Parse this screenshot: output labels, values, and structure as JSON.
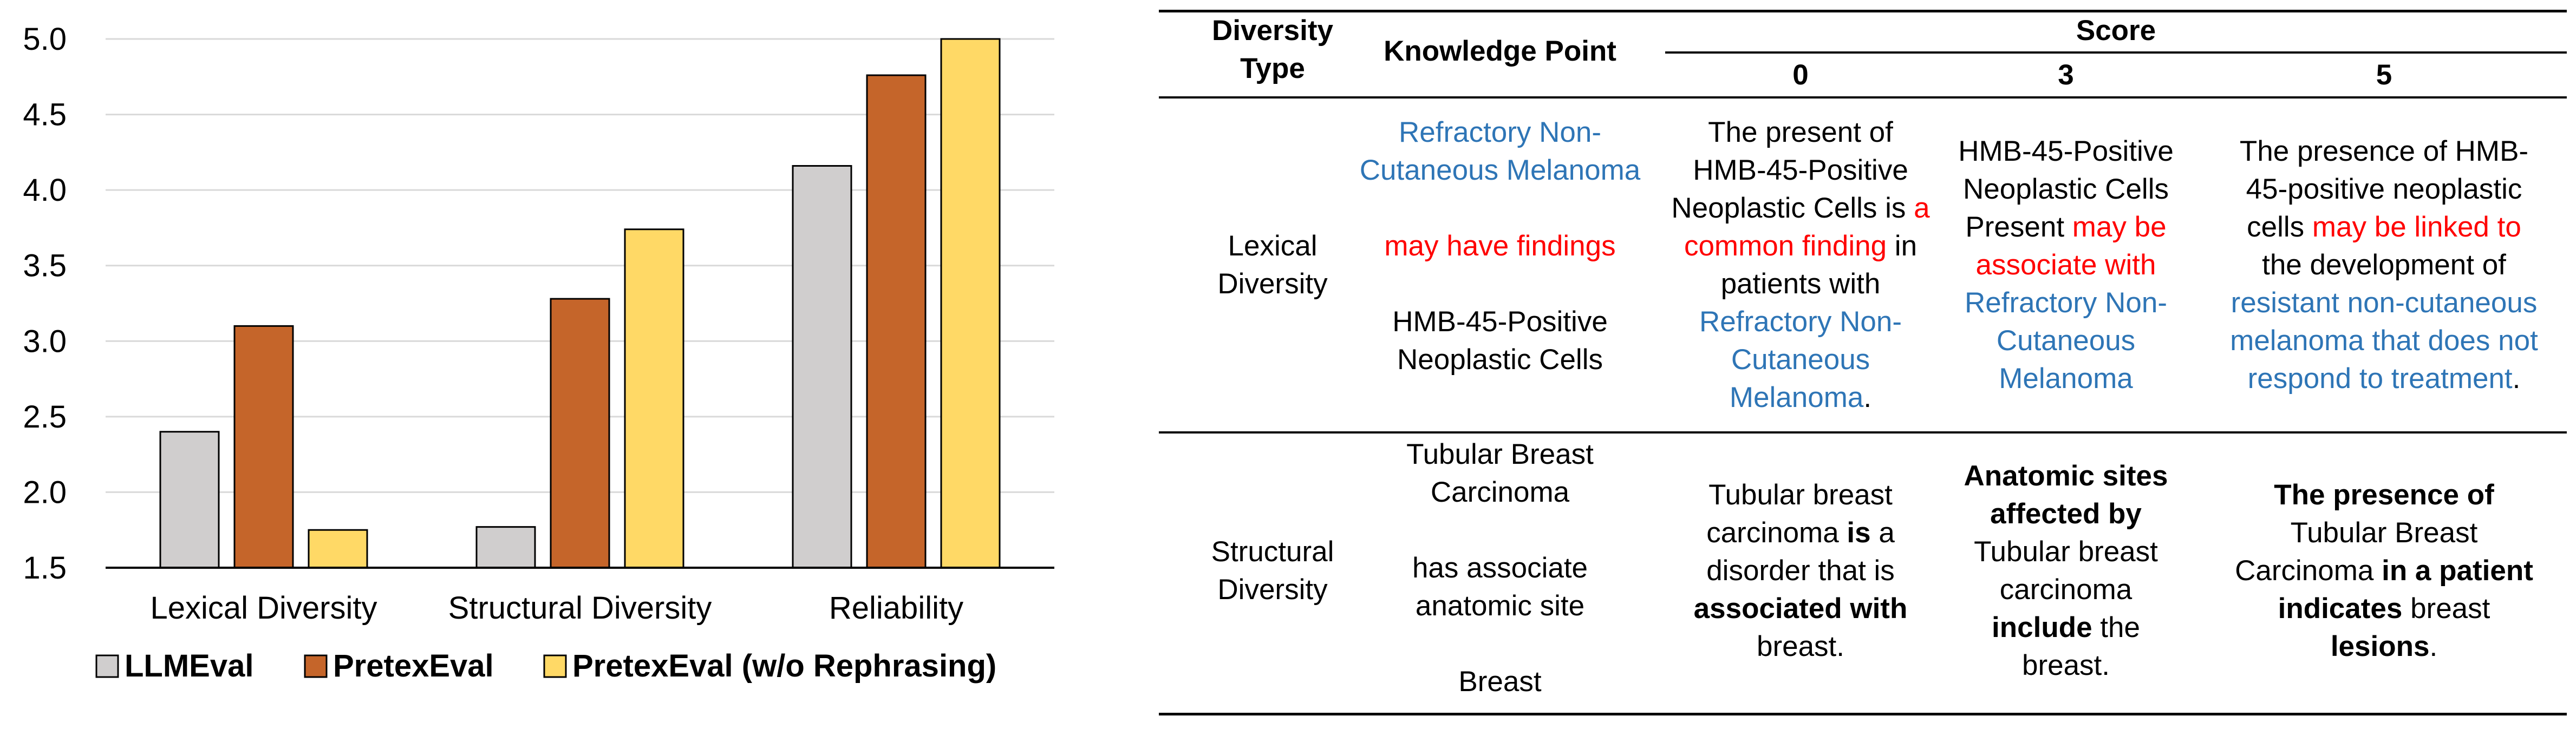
{
  "chart_data": {
    "type": "bar",
    "categories": [
      "Lexical Diversity",
      "Structural Diversity",
      "Reliability"
    ],
    "series": [
      {
        "name": "LLMEval",
        "values": [
          2.4,
          1.77,
          4.16
        ],
        "color": "#d0cece"
      },
      {
        "name": "PretexEval",
        "values": [
          3.1,
          3.28,
          4.76
        ],
        "color": "#c5652a"
      },
      {
        "name": "PretexEval (w/o Rephrasing)",
        "values": [
          1.75,
          3.74,
          5.0
        ],
        "color": "#ffd966"
      }
    ],
    "yticks": [
      "1.5",
      "2.0",
      "2.5",
      "3.0",
      "3.5",
      "4.0",
      "4.5",
      "5.0"
    ],
    "ylim": [
      1.5,
      5.0
    ],
    "grid": true,
    "legend": "bottom"
  },
  "table": {
    "headers": {
      "diversity_type": [
        "Diversity",
        "Type"
      ],
      "knowledge_point": "Knowledge Point",
      "score": "Score",
      "score0": "0",
      "score3": "3",
      "score5": "5"
    },
    "lexical": {
      "type": [
        "Lexical",
        "Diversity"
      ],
      "kp": [
        [
          {
            "t": "Refractory Non-",
            "c": "blue"
          }
        ],
        [
          {
            "t": "Cutaneous Melanoma",
            "c": "blue"
          }
        ],
        [],
        [
          {
            "t": "may have findings",
            "c": "red"
          }
        ],
        [],
        [
          {
            "t": "HMB-45-Positive"
          }
        ],
        [
          {
            "t": "Neoplastic Cells"
          }
        ]
      ],
      "s0": [
        [
          {
            "t": "The present of"
          }
        ],
        [
          {
            "t": "HMB-45-Positive"
          }
        ],
        [
          {
            "t": "Neoplastic Cells is "
          },
          {
            "t": "a",
            "c": "red"
          }
        ],
        [
          {
            "t": "common finding",
            "c": "red"
          },
          {
            "t": " in"
          }
        ],
        [
          {
            "t": "patients with"
          }
        ],
        [
          {
            "t": "Refractory Non-",
            "c": "blue"
          }
        ],
        [
          {
            "t": "Cutaneous",
            "c": "blue"
          }
        ],
        [
          {
            "t": "Melanoma",
            "c": "blue"
          },
          {
            "t": "."
          }
        ]
      ],
      "s3": [
        [
          {
            "t": "HMB-45-Positive"
          }
        ],
        [
          {
            "t": "Neoplastic Cells"
          }
        ],
        [
          {
            "t": "Present "
          },
          {
            "t": "may be",
            "c": "red"
          }
        ],
        [
          {
            "t": "associate with",
            "c": "red"
          }
        ],
        [
          {
            "t": "Refractory Non-",
            "c": "blue"
          }
        ],
        [
          {
            "t": "Cutaneous",
            "c": "blue"
          }
        ],
        [
          {
            "t": "Melanoma",
            "c": "blue"
          }
        ]
      ],
      "s5": [
        [
          {
            "t": "The presence of HMB-"
          }
        ],
        [
          {
            "t": "45-positive neoplastic"
          }
        ],
        [
          {
            "t": "cells "
          },
          {
            "t": "may be linked to",
            "c": "red"
          }
        ],
        [
          {
            "t": "the development of"
          }
        ],
        [
          {
            "t": "resistant non-cutaneous",
            "c": "blue"
          }
        ],
        [
          {
            "t": "melanoma that does not",
            "c": "blue"
          }
        ],
        [
          {
            "t": "respond to treatment",
            "c": "blue"
          },
          {
            "t": "."
          }
        ]
      ]
    },
    "structural": {
      "type": [
        "Structural",
        "Diversity"
      ],
      "kp": [
        [
          {
            "t": "Tubular Breast"
          }
        ],
        [
          {
            "t": "Carcinoma"
          }
        ],
        [],
        [
          {
            "t": "has associate"
          }
        ],
        [
          {
            "t": "anatomic site"
          }
        ],
        [],
        [
          {
            "t": "Breast"
          }
        ]
      ],
      "s0": [
        [
          {
            "t": "Tubular breast"
          }
        ],
        [
          {
            "t": "carcinoma "
          },
          {
            "t": "is",
            "c": "bold"
          },
          {
            "t": " a"
          }
        ],
        [
          {
            "t": "disorder that is"
          }
        ],
        [
          {
            "t": "associated with",
            "c": "bold"
          }
        ],
        [
          {
            "t": "breast."
          }
        ]
      ],
      "s3": [
        [
          {
            "t": "Anatomic sites",
            "c": "bold"
          }
        ],
        [
          {
            "t": "affected by",
            "c": "bold"
          }
        ],
        [
          {
            "t": "Tubular breast"
          }
        ],
        [
          {
            "t": "carcinoma"
          }
        ],
        [
          {
            "t": "include",
            "c": "bold"
          },
          {
            "t": " the"
          }
        ],
        [
          {
            "t": "breast."
          }
        ]
      ],
      "s5": [
        [
          {
            "t": "The presence of",
            "c": "bold"
          }
        ],
        [
          {
            "t": "Tubular Breast"
          }
        ],
        [
          {
            "t": "Carcinoma "
          },
          {
            "t": "in a patient",
            "c": "bold"
          }
        ],
        [
          {
            "t": "indicates",
            "c": "bold"
          },
          {
            "t": " breast"
          }
        ],
        [
          {
            "t": "lesions",
            "c": "bold"
          },
          {
            "t": "."
          }
        ]
      ]
    }
  }
}
